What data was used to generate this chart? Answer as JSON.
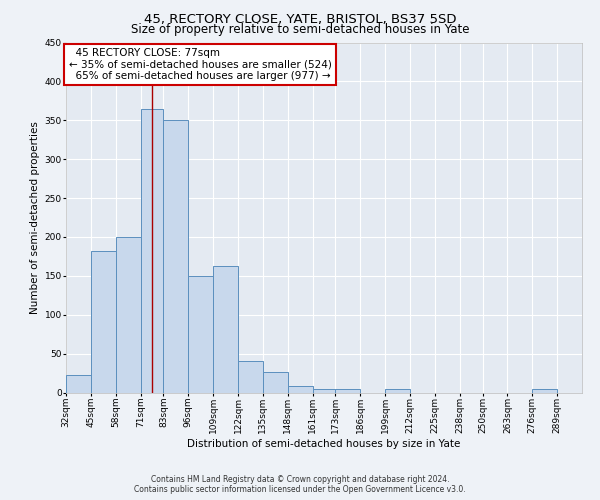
{
  "title": "45, RECTORY CLOSE, YATE, BRISTOL, BS37 5SD",
  "subtitle": "Size of property relative to semi-detached houses in Yate",
  "xlabel": "Distribution of semi-detached houses by size in Yate",
  "ylabel": "Number of semi-detached properties",
  "footer_line1": "Contains HM Land Registry data © Crown copyright and database right 2024.",
  "footer_line2": "Contains public sector information licensed under the Open Government Licence v3.0.",
  "bin_labels": [
    "32sqm",
    "45sqm",
    "58sqm",
    "71sqm",
    "83sqm",
    "96sqm",
    "109sqm",
    "122sqm",
    "135sqm",
    "148sqm",
    "161sqm",
    "173sqm",
    "186sqm",
    "199sqm",
    "212sqm",
    "225sqm",
    "238sqm",
    "250sqm",
    "263sqm",
    "276sqm",
    "289sqm"
  ],
  "bin_edges": [
    32,
    45,
    58,
    71,
    83,
    96,
    109,
    122,
    135,
    148,
    161,
    173,
    186,
    199,
    212,
    225,
    238,
    250,
    263,
    276,
    289
  ],
  "bar_heights": [
    22,
    182,
    200,
    365,
    350,
    150,
    163,
    40,
    26,
    9,
    5,
    4,
    0,
    5,
    0,
    0,
    0,
    0,
    0,
    5,
    0
  ],
  "bar_color": "#c8d8ec",
  "bar_edge_color": "#5b8fbe",
  "bar_edge_width": 0.7,
  "ylim": [
    0,
    450
  ],
  "yticks": [
    0,
    50,
    100,
    150,
    200,
    250,
    300,
    350,
    400,
    450
  ],
  "property_size": 77,
  "property_label": "45 RECTORY CLOSE: 77sqm",
  "pct_smaller": 35,
  "pct_larger": 65,
  "count_smaller": 524,
  "count_larger": 977,
  "red_line_color": "#aa0000",
  "annotation_box_edge_color": "#cc0000",
  "background_color": "#eef2f7",
  "plot_background_color": "#e4eaf2",
  "grid_color": "#ffffff",
  "title_fontsize": 9.5,
  "subtitle_fontsize": 8.5,
  "axis_label_fontsize": 7.5,
  "tick_fontsize": 6.5,
  "annotation_fontsize": 7.5,
  "footer_fontsize": 5.5
}
